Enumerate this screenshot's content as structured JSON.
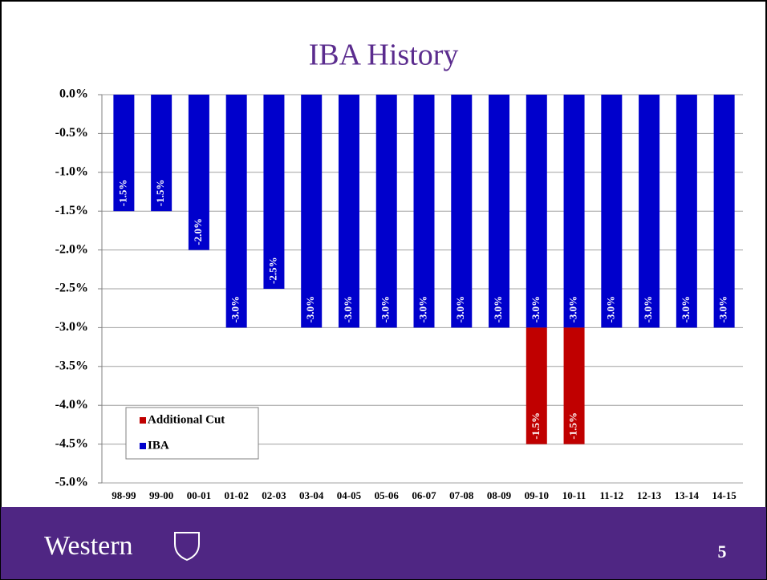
{
  "chart_data": {
    "type": "bar",
    "title": "IBA History",
    "categories": [
      "98-99",
      "99-00",
      "00-01",
      "01-02",
      "02-03",
      "03-04",
      "04-05",
      "05-06",
      "06-07",
      "07-08",
      "08-09",
      "09-10",
      "10-11",
      "11-12",
      "12-13",
      "13-14",
      "14-15"
    ],
    "series": [
      {
        "name": "IBA",
        "color": "#0000cc",
        "values": [
          -1.5,
          -1.5,
          -2.0,
          -3.0,
          -2.5,
          -3.0,
          -3.0,
          -3.0,
          -3.0,
          -3.0,
          -3.0,
          -3.0,
          -3.0,
          -3.0,
          -3.0,
          -3.0,
          -3.0
        ],
        "value_labels": [
          "-1.5%",
          "-1.5%",
          "-2.0%",
          "-3.0%",
          "-2.5%",
          "-3.0%",
          "-3.0%",
          "-3.0%",
          "-3.0%",
          "-3.0%",
          "-3.0%",
          "-3.0%",
          "-3.0%",
          "-3.0%",
          "-3.0%",
          "-3.0%",
          "-3.0%"
        ]
      },
      {
        "name": "Additional Cut",
        "color": "#c00000",
        "values": [
          null,
          null,
          null,
          null,
          null,
          null,
          null,
          null,
          null,
          null,
          null,
          -1.5,
          -1.5,
          null,
          null,
          null,
          null
        ],
        "value_labels": [
          null,
          null,
          null,
          null,
          null,
          null,
          null,
          null,
          null,
          null,
          null,
          "-1.5%",
          "-1.5%",
          null,
          null,
          null,
          null
        ]
      }
    ],
    "stacked": true,
    "ylim": [
      -5.0,
      0.0
    ],
    "yticks": [
      {
        "value": 0,
        "label": "0.0%"
      },
      {
        "value": -0.5,
        "label": "-0.5%"
      },
      {
        "value": -1.0,
        "label": "-1.0%"
      },
      {
        "value": -1.5,
        "label": "-1.5%"
      },
      {
        "value": -2.0,
        "label": "-2.0%"
      },
      {
        "value": -2.5,
        "label": "-2.5%"
      },
      {
        "value": -3.0,
        "label": "-3.0%"
      },
      {
        "value": -3.5,
        "label": "-3.5%"
      },
      {
        "value": -4.0,
        "label": "-4.0%"
      },
      {
        "value": -4.5,
        "label": "-4.5%"
      },
      {
        "value": -5.0,
        "label": "-5.0%"
      }
    ],
    "grid": true,
    "legend": "lower left"
  },
  "footer": {
    "logo": "Western",
    "page": "5"
  }
}
